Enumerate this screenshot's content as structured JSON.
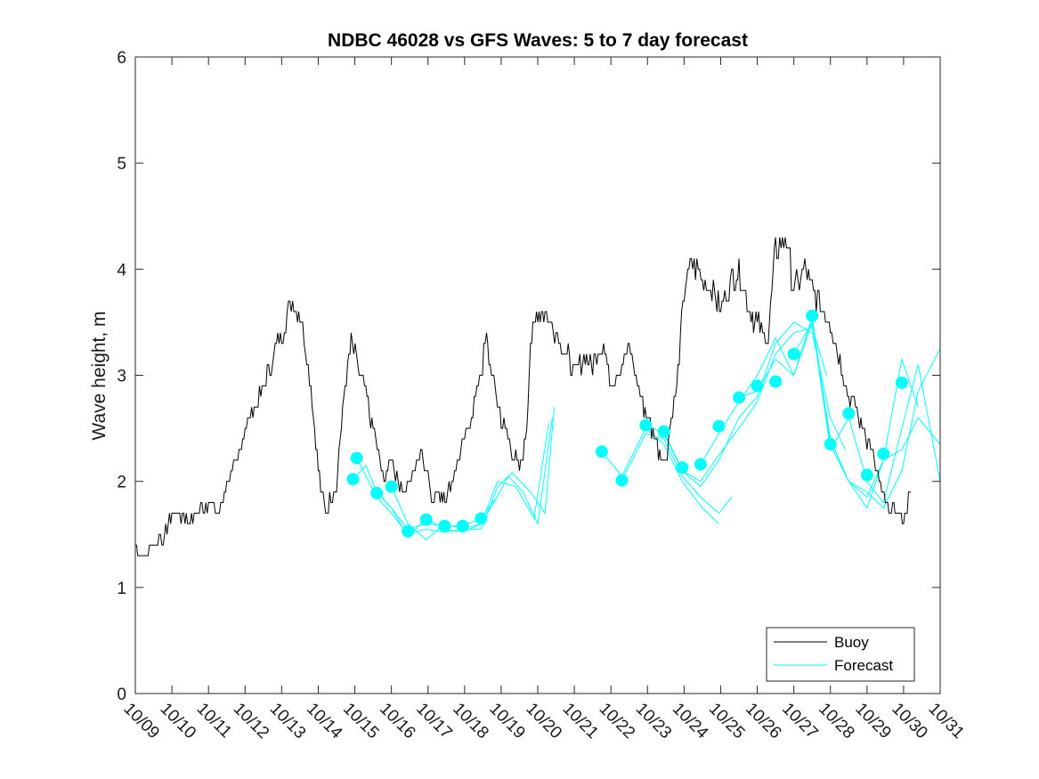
{
  "chart_data": {
    "type": "line",
    "title": "NDBC 46028 vs GFS Waves: 5 to 7 day forecast",
    "xlabel": "",
    "ylabel": "Wave height, m",
    "xlim": [
      0,
      22
    ],
    "ylim": [
      0,
      6
    ],
    "y_ticks": [
      0,
      1,
      2,
      3,
      4,
      5,
      6
    ],
    "x_tick_labels": [
      "10/09",
      "10/10",
      "10/11",
      "10/12",
      "10/13",
      "10/14",
      "10/15",
      "10/16",
      "10/17",
      "10/18",
      "10/19",
      "10/20",
      "10/21",
      "10/22",
      "10/23",
      "10/24",
      "10/25",
      "10/26",
      "10/27",
      "10/28",
      "10/29",
      "10/30",
      "10/31"
    ],
    "legend": {
      "position": "bottom-right",
      "entries": [
        "Buoy",
        "Forecast"
      ]
    },
    "colors": {
      "buoy": "#000000",
      "forecast": "#00ffff",
      "axis": "#262626"
    },
    "series": [
      {
        "name": "Buoy",
        "x": [
          0,
          0.2,
          0.5,
          0.8,
          1.0,
          1.5,
          2.0,
          2.3,
          2.5,
          2.8,
          3.0,
          3.5,
          4.0,
          4.3,
          4.5,
          4.8,
          5.0,
          5.2,
          5.5,
          5.7,
          5.9,
          6.3,
          6.5,
          6.8,
          7.0,
          7.3,
          7.5,
          7.8,
          8.0,
          8.1,
          8.3,
          8.5,
          8.8,
          9.0,
          9.3,
          9.6,
          9.8,
          10.0,
          10.3,
          10.5,
          10.7,
          10.8,
          11.0,
          11.2,
          11.5,
          11.8,
          12.0,
          12.3,
          12.5,
          12.8,
          13.0,
          13.3,
          13.5,
          13.8,
          14.0,
          14.3,
          14.5,
          14.8,
          15.0,
          15.2,
          15.5,
          15.8,
          16.0,
          16.3,
          16.5,
          16.8,
          17.0,
          17.3,
          17.5,
          17.8,
          18.0,
          18.3,
          18.5,
          18.8,
          19.0,
          19.3,
          19.5,
          19.8,
          20.0,
          20.2,
          20.4,
          20.6,
          20.8,
          21.0,
          21.2
        ],
        "values": [
          1.4,
          1.3,
          1.4,
          1.5,
          1.7,
          1.65,
          1.8,
          1.7,
          2.0,
          2.2,
          2.5,
          2.9,
          3.4,
          3.7,
          3.6,
          2.9,
          2.1,
          1.7,
          2.0,
          2.8,
          3.3,
          2.8,
          2.5,
          2.0,
          2.2,
          1.9,
          2.0,
          2.3,
          2.1,
          1.8,
          1.9,
          1.85,
          2.2,
          2.4,
          2.8,
          3.3,
          2.9,
          2.6,
          2.3,
          2.1,
          2.5,
          3.3,
          3.6,
          3.6,
          3.4,
          3.2,
          3.0,
          3.2,
          3.1,
          3.3,
          2.9,
          3.1,
          3.3,
          2.8,
          2.6,
          2.3,
          2.2,
          2.9,
          3.8,
          4.1,
          3.9,
          3.8,
          3.6,
          3.9,
          4.0,
          3.6,
          3.5,
          3.3,
          4.2,
          4.3,
          3.8,
          4.0,
          3.8,
          3.6,
          3.5,
          3.1,
          2.8,
          2.6,
          2.4,
          2.2,
          1.9,
          1.75,
          1.7,
          1.65,
          1.9
        ]
      }
    ],
    "forecast_points": {
      "x": [
        5.95,
        6.05,
        6.6,
        7.0,
        7.45,
        7.95,
        8.45,
        8.95,
        9.45,
        12.75,
        13.3,
        13.95,
        14.45,
        14.95,
        15.45,
        15.95,
        16.5,
        17.0,
        17.5,
        18.0,
        18.5,
        19.0,
        19.5,
        20.0,
        20.45,
        20.95
      ],
      "values": [
        2.02,
        2.22,
        1.89,
        1.95,
        1.53,
        1.64,
        1.58,
        1.58,
        1.65,
        2.28,
        2.01,
        2.53,
        2.47,
        2.13,
        2.16,
        2.52,
        2.79,
        2.9,
        2.94,
        3.2,
        3.56,
        2.35,
        2.64,
        2.06,
        2.26,
        2.93
      ]
    },
    "forecast_lines": [
      {
        "x": [
          5.95,
          6.3,
          6.6,
          7.0,
          7.45,
          7.95,
          8.45,
          8.95,
          9.45,
          9.8
        ],
        "values": [
          2.02,
          2.15,
          1.9,
          1.75,
          1.55,
          1.6,
          1.58,
          1.58,
          1.65,
          1.82
        ]
      },
      {
        "x": [
          6.05,
          6.6,
          7.0,
          7.45,
          7.95,
          8.45,
          8.95,
          9.45,
          9.8,
          10.2,
          10.6,
          11.0,
          11.4
        ],
        "values": [
          2.22,
          1.85,
          1.7,
          1.5,
          1.55,
          1.52,
          1.55,
          1.6,
          1.8,
          2.05,
          1.9,
          1.6,
          2.6
        ]
      },
      {
        "x": [
          6.6,
          7.0,
          7.45,
          7.95,
          8.45,
          8.95,
          9.45,
          9.9,
          10.4,
          10.9,
          11.3
        ],
        "values": [
          1.89,
          1.75,
          1.48,
          1.65,
          1.55,
          1.52,
          1.6,
          2.0,
          1.95,
          1.65,
          2.55
        ]
      },
      {
        "x": [
          7.0,
          7.45,
          7.95,
          8.45,
          8.95,
          9.45,
          9.9,
          10.3,
          10.8,
          11.2,
          11.45
        ],
        "values": [
          1.95,
          1.6,
          1.45,
          1.6,
          1.55,
          1.55,
          1.95,
          2.08,
          1.9,
          1.7,
          2.7
        ]
      },
      {
        "x": [
          12.75,
          13.3,
          13.95,
          14.45,
          14.95,
          15.5,
          15.95
        ],
        "values": [
          2.28,
          2.05,
          2.5,
          2.35,
          2.0,
          1.75,
          1.6
        ]
      },
      {
        "x": [
          13.3,
          13.95,
          14.45,
          14.95,
          15.45,
          15.95,
          16.3
        ],
        "values": [
          2.01,
          2.45,
          2.4,
          2.05,
          1.85,
          1.7,
          1.85
        ]
      },
      {
        "x": [
          13.95,
          14.45,
          14.95,
          15.45,
          15.95,
          16.5,
          17.0,
          17.5,
          18.0,
          18.5,
          18.9
        ],
        "values": [
          2.53,
          2.45,
          2.1,
          2.0,
          2.25,
          2.5,
          2.75,
          3.2,
          3.4,
          3.45,
          3.0
        ]
      },
      {
        "x": [
          14.45,
          14.95,
          15.45,
          15.95,
          16.5,
          17.0,
          17.5,
          18.0,
          18.5,
          19.0,
          19.4
        ],
        "values": [
          2.47,
          2.1,
          1.95,
          2.2,
          2.6,
          2.8,
          3.3,
          3.5,
          3.4,
          2.6,
          2.3
        ]
      },
      {
        "x": [
          15.45,
          15.95,
          16.5,
          17.0,
          17.5,
          18.0,
          18.5,
          19.0,
          19.5,
          20.0,
          20.45,
          20.95,
          21.4
        ],
        "values": [
          2.16,
          2.45,
          2.75,
          3.0,
          3.35,
          3.0,
          3.5,
          2.4,
          2.0,
          1.75,
          2.2,
          3.15,
          2.7
        ]
      },
      {
        "x": [
          16.5,
          17.0,
          17.5,
          18.0,
          18.5,
          19.0,
          19.5,
          20.0,
          20.45,
          20.95,
          21.4,
          22.0
        ],
        "values": [
          2.79,
          2.85,
          3.15,
          3.0,
          3.55,
          2.35,
          2.0,
          1.85,
          2.2,
          2.3,
          2.6,
          2.35
        ]
      },
      {
        "x": [
          18.0,
          18.5,
          19.0,
          19.5,
          20.0,
          20.45,
          20.95,
          21.4,
          22.0
        ],
        "values": [
          3.2,
          3.5,
          2.3,
          2.6,
          2.0,
          1.8,
          2.5,
          3.1,
          2.0
        ]
      },
      {
        "x": [
          19.0,
          19.5,
          20.0,
          20.45,
          20.95,
          21.4,
          22.0
        ],
        "values": [
          2.35,
          2.0,
          1.9,
          1.75,
          2.1,
          2.85,
          3.25
        ]
      }
    ]
  }
}
